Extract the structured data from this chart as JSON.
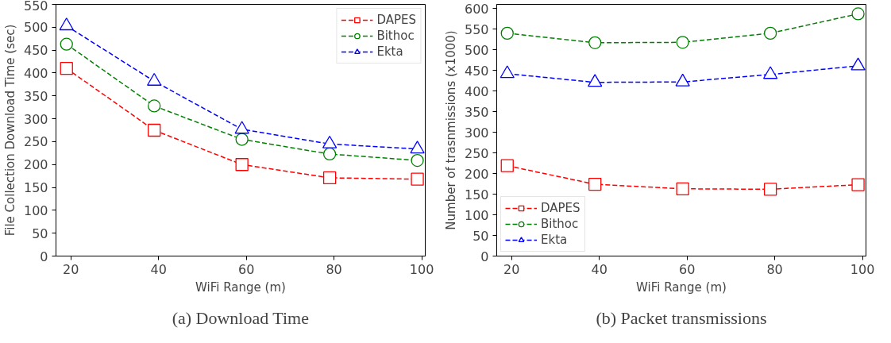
{
  "chart_data": [
    {
      "type": "line",
      "title": "(a) Download Time",
      "xlabel": "WiFi Range (m)",
      "ylabel": "File Collection Download Time (sec)",
      "x": [
        19,
        39,
        59,
        79,
        99
      ],
      "xlim": [
        16.6,
        100.8
      ],
      "xticks": [
        20,
        40,
        60,
        80,
        100
      ],
      "ylim": [
        0,
        550
      ],
      "yticks": [
        0,
        50,
        100,
        150,
        200,
        250,
        300,
        350,
        400,
        450,
        500,
        550
      ],
      "grid": false,
      "legend": "top right",
      "line_style": "dashed",
      "series": [
        {
          "name": "DAPES",
          "color": "#ff0000",
          "marker": "square",
          "values": [
            410,
            275,
            200,
            171,
            168
          ]
        },
        {
          "name": "Bithoc",
          "color": "#008000",
          "marker": "circle",
          "values": [
            463,
            328,
            255,
            223,
            209
          ]
        },
        {
          "name": "Ekta",
          "color": "#0000ff",
          "marker": "triangle",
          "values": [
            503,
            382,
            277,
            245,
            234
          ]
        }
      ]
    },
    {
      "type": "line",
      "title": "(b) Packet transmissions",
      "xlabel": "WiFi Range (m)",
      "ylabel": "Number of trasnmissions (x1000)",
      "x": [
        19,
        39,
        59,
        79,
        99
      ],
      "xlim": [
        16.6,
        100.8
      ],
      "xticks": [
        20,
        40,
        60,
        80,
        100
      ],
      "ylim": [
        0,
        610
      ],
      "yticks": [
        0,
        50,
        100,
        150,
        200,
        250,
        300,
        350,
        400,
        450,
        500,
        550,
        600
      ],
      "grid": false,
      "legend": "bottom left",
      "line_style": "dashed",
      "series": [
        {
          "name": "DAPES",
          "color": "#ff0000",
          "marker": "square",
          "values": [
            219,
            174,
            163,
            162,
            173
          ]
        },
        {
          "name": "Bithoc",
          "color": "#008000",
          "marker": "circle",
          "values": [
            540,
            517,
            518,
            540,
            587
          ]
        },
        {
          "name": "Ekta",
          "color": "#0000ff",
          "marker": "triangle",
          "values": [
            442,
            421,
            422,
            440,
            461
          ]
        }
      ]
    }
  ]
}
